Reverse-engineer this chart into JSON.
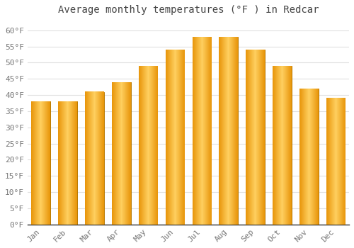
{
  "months": [
    "Jan",
    "Feb",
    "Mar",
    "Apr",
    "May",
    "Jun",
    "Jul",
    "Aug",
    "Sep",
    "Oct",
    "Nov",
    "Dec"
  ],
  "values": [
    38,
    38,
    41,
    44,
    49,
    54,
    58,
    58,
    54,
    49,
    42,
    39
  ],
  "bar_color_left": "#F5A800",
  "bar_color_center": "#FFD060",
  "bar_color_right": "#F5A800",
  "bar_edge_color": "#C88000",
  "title": "Average monthly temperatures (°F ) in Redcar",
  "ylim": [
    0,
    63
  ],
  "yticks": [
    0,
    5,
    10,
    15,
    20,
    25,
    30,
    35,
    40,
    45,
    50,
    55,
    60
  ],
  "ytick_labels": [
    "0°F",
    "5°F",
    "10°F",
    "15°F",
    "20°F",
    "25°F",
    "30°F",
    "35°F",
    "40°F",
    "45°F",
    "50°F",
    "55°F",
    "60°F"
  ],
  "background_color": "#FFFFFF",
  "plot_bg_color": "#FFFFFF",
  "grid_color": "#E0E0E0",
  "title_fontsize": 10,
  "tick_fontsize": 8,
  "bar_width": 0.7
}
